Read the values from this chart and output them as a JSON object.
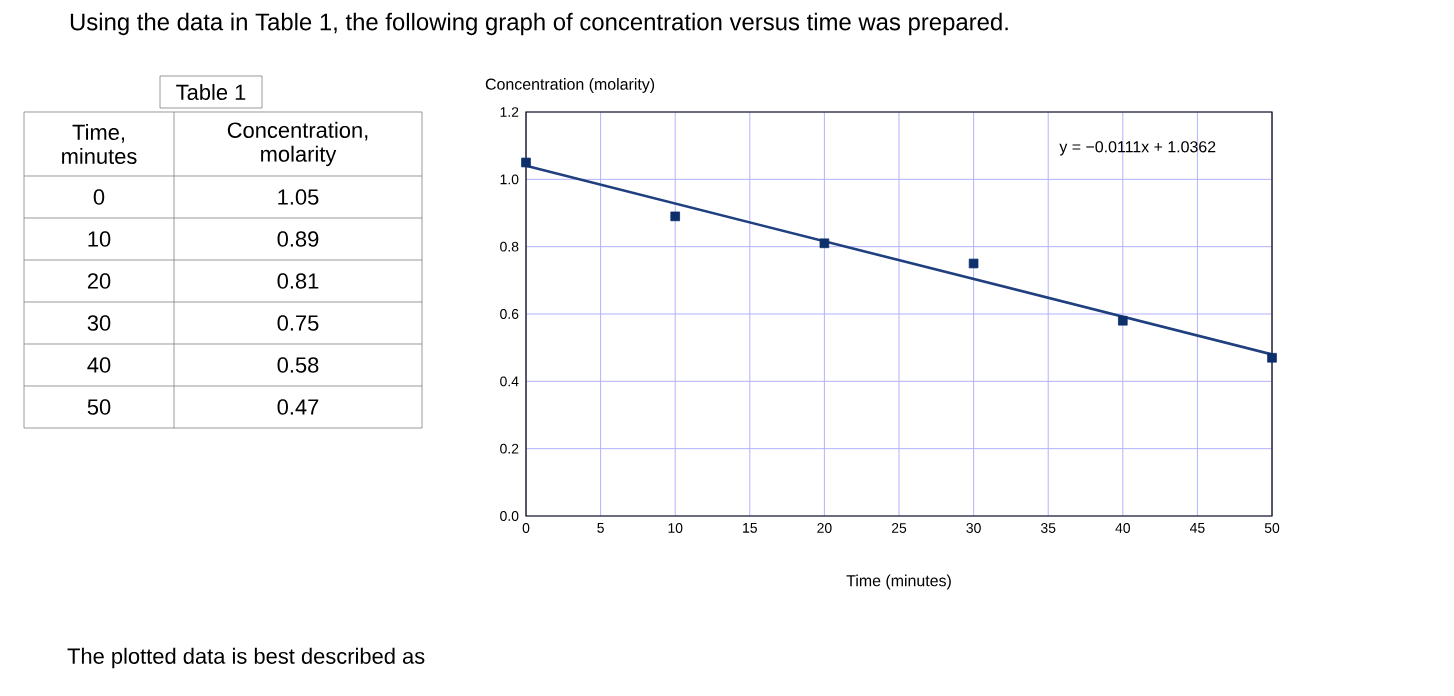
{
  "chart_data": [
    {
      "type": "heatmap",
      "title": "Table 1",
      "ylabel": "Time, minutes",
      "categories": [
        "Concentration, molarity"
      ],
      "y_categories": [
        "0",
        "10",
        "20",
        "30",
        "40",
        "50"
      ],
      "cells": [
        [
          1.05
        ],
        [
          0.89
        ],
        [
          0.81
        ],
        [
          0.75
        ],
        [
          0.58
        ],
        [
          0.47
        ]
      ],
      "data_labels": true
    },
    {
      "type": "scatter",
      "title": "Using the data in Table 1, the following graph of concentration versus time was prepared.",
      "xlabel": "Time (minutes)",
      "ylabel": "Concentration (molarity)",
      "x": [
        0,
        10,
        20,
        30,
        40,
        50
      ],
      "series": [
        {
          "color": "#0d2f6b",
          "marker": "square",
          "values": [
            1.05,
            0.89,
            0.81,
            0.75,
            0.58,
            0.47
          ]
        },
        {
          "type": "line",
          "color": "#1f3f7f",
          "marker": "none",
          "line_style": "solid",
          "x": [
            0,
            50
          ],
          "values": [
            1.04,
            0.48
          ]
        }
      ],
      "xlim": [
        0,
        50
      ],
      "xticks": [
        0,
        5,
        10,
        15,
        20,
        25,
        30,
        35,
        40,
        45,
        50
      ],
      "ylim": [
        0,
        1.2
      ],
      "yticks": [
        {
          "value": 0,
          "label": "0.0"
        },
        0.2,
        0.4,
        0.6,
        0.8,
        {
          "value": 1,
          "label": "1.0"
        },
        1.2
      ],
      "grid": true,
      "annotations": [
        "y = −0.0111x + 1.0362",
        "The plotted data is best described as"
      ]
    }
  ]
}
